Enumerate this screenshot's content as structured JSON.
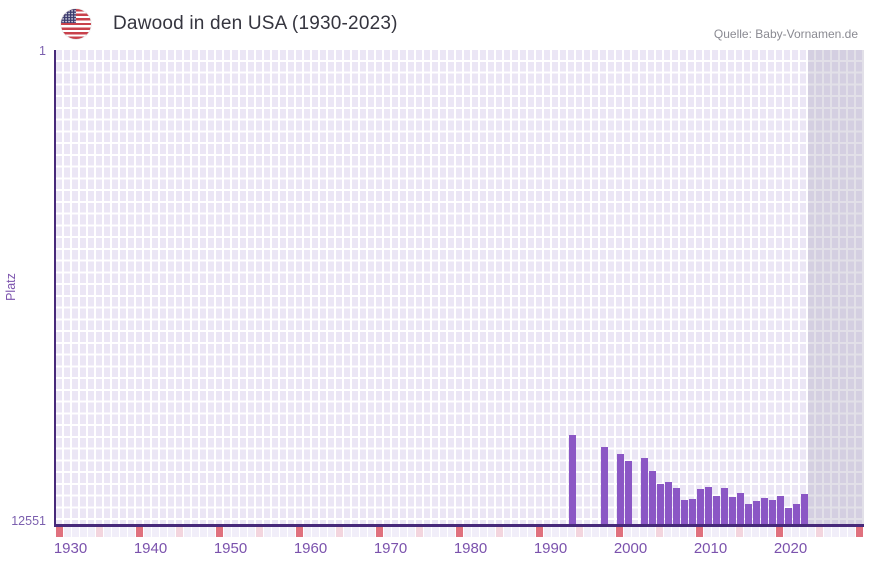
{
  "header": {
    "source": "Quelle: Baby-Vornamen.de"
  },
  "chart_data": {
    "type": "bar",
    "title": "Dawood in den USA (1930-2023)",
    "xlabel": "",
    "ylabel": "Platz",
    "y_axis": {
      "top_tick": "1",
      "bottom_tick": "12551",
      "min": 1,
      "max": 12551,
      "reversed": true
    },
    "x_axis": {
      "range_start": 1930,
      "range_end": 2030,
      "data_end_year": 2023,
      "tick_years": [
        "1930",
        "1940",
        "1950",
        "1960",
        "1970",
        "1980",
        "1990",
        "2000",
        "2010",
        "2020"
      ],
      "decade_marker_interval": 10,
      "half_decade_marker_interval": 5
    },
    "series": [
      {
        "name": "Platz",
        "years": [
          1994,
          1998,
          2000,
          2001,
          2003,
          2004,
          2005,
          2006,
          2007,
          2008,
          2009,
          2010,
          2011,
          2012,
          2013,
          2014,
          2015,
          2016,
          2017,
          2018,
          2019,
          2020,
          2021,
          2022,
          2023
        ],
        "values": [
          10190,
          10500,
          10685,
          10880,
          10815,
          11140,
          11490,
          11435,
          11600,
          11915,
          11890,
          11630,
          11575,
          11810,
          11600,
          11840,
          11730,
          12020,
          11945,
          11865,
          11915,
          11810,
          12130,
          12020,
          11760
        ]
      }
    ],
    "legend": "none",
    "grid": "on",
    "colors": {
      "bar": "#8b57c5",
      "axis_line": "#47297a",
      "grid_cell": "#ebe6f5",
      "grid_line": "#ffffff",
      "future_zone_overlay": "rgba(166,160,184,0.32)",
      "marker_default": "#f1eef9",
      "marker_decade": "#e0717e",
      "marker_half_decade": "#f3d5de",
      "tick_label": "#7b52ad",
      "title_text": "#35353f",
      "source_text": "#8a8a92"
    }
  }
}
